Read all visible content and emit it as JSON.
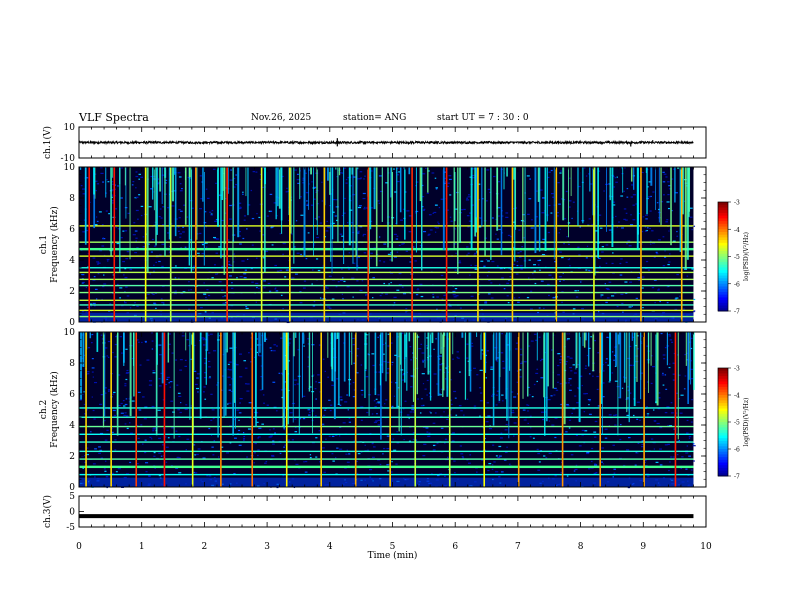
{
  "header": {
    "title": "VLF Spectra",
    "date": "Nov.26, 2025",
    "station": "station= ANG",
    "start": "start UT = 7 : 30 : 0"
  },
  "chart_data": [
    {
      "type": "line",
      "name": "ch1-waveform",
      "ylabel": "ch.1(V)",
      "ylim": [
        -10,
        10
      ],
      "yticks": [
        "10",
        "-10"
      ],
      "xlim": [
        0,
        10
      ],
      "baseline": 0,
      "noise_amplitude": 0.7,
      "spikes": [
        {
          "t": 4.12,
          "v": 2.8
        },
        {
          "t": 4.12,
          "v": -2.5
        },
        {
          "t": 8.8,
          "v": -2.6
        },
        {
          "t": 9.15,
          "v": 1.5
        }
      ],
      "data_end_min": 9.8
    },
    {
      "type": "heatmap",
      "name": "ch1-spectrogram",
      "ylabel": "Frequency (kHz)",
      "channel_label": "ch.1",
      "ylim": [
        0,
        10
      ],
      "yticks": [
        "0",
        "2",
        "4",
        "6",
        "8",
        "10"
      ],
      "xlim": [
        0,
        10
      ],
      "data_end_min": 9.8,
      "colorbar": {
        "label": "log(PSD)(V²/Hz)",
        "range": [
          -7,
          -3
        ],
        "ticks": [
          "-3",
          "-4",
          "-5",
          "-6",
          "-7"
        ]
      },
      "tones_khz": [
        0.35,
        0.75,
        1.1,
        1.4,
        1.9,
        2.35,
        2.75,
        3.2,
        3.5,
        4.25,
        4.7,
        5.15,
        6.2
      ],
      "bright_tone_khz": 4.7,
      "bursts_min": [
        0.15,
        0.55,
        1.05,
        1.45,
        1.85,
        2.35,
        2.9,
        3.35,
        3.9,
        4.6,
        5.3,
        5.85,
        6.35,
        6.9,
        7.6,
        8.2,
        8.95,
        9.6
      ]
    },
    {
      "type": "heatmap",
      "name": "ch2-spectrogram",
      "ylabel": "Frequency (kHz)",
      "channel_label": "ch.2",
      "ylim": [
        0,
        10
      ],
      "yticks": [
        "0",
        "2",
        "4",
        "6",
        "8",
        "10"
      ],
      "xlim": [
        0,
        10
      ],
      "data_end_min": 9.8,
      "colorbar": {
        "label": "log(PSD)(V²/Hz)",
        "range": [
          -7,
          -3
        ],
        "ticks": [
          "-3",
          "-4",
          "-5",
          "-6",
          "-7"
        ]
      },
      "tones_khz": [
        0.8,
        1.3,
        1.8,
        2.3,
        2.9,
        3.4,
        3.9,
        4.5,
        5.1
      ],
      "bright_tone_khz": 1.3,
      "bursts_min": [
        0.1,
        0.5,
        0.9,
        1.35,
        1.8,
        2.25,
        2.75,
        3.3,
        3.85,
        4.4,
        4.95,
        5.35,
        5.9,
        6.45,
        7.0,
        7.7,
        8.3,
        9.0,
        9.5
      ]
    },
    {
      "type": "line",
      "name": "ch3-waveform",
      "ylabel": "ch.3(V)",
      "ylim": [
        -5,
        5
      ],
      "yticks": [
        "5",
        "0",
        "-5"
      ],
      "xlim": [
        0,
        10
      ],
      "xticks": [
        "0",
        "1",
        "2",
        "3",
        "4",
        "5",
        "6",
        "7",
        "8",
        "9",
        "10"
      ],
      "xlabel": "Time (min)",
      "constant_value": -1.5,
      "data_end_min": 9.8
    }
  ]
}
